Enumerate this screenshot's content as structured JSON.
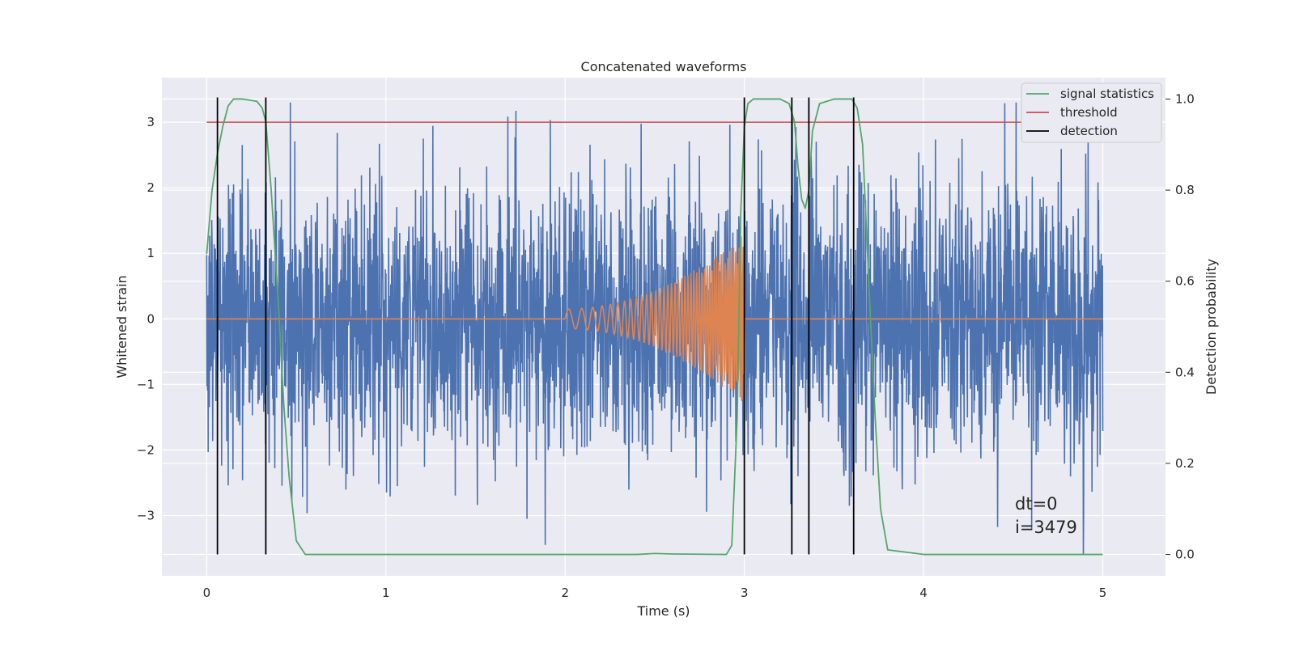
{
  "chart_data": {
    "type": "line",
    "title": "Concatenated waveforms",
    "xlabel": "Time (s)",
    "ylabel": "Whitened strain",
    "y2label": "Detection probability",
    "xlim": [
      -0.25,
      5.35
    ],
    "ylim": [
      -3.92,
      3.68
    ],
    "y2lim": [
      -0.047,
      1.047
    ],
    "x_ticks": [
      0,
      1,
      2,
      3,
      4,
      5
    ],
    "y_ticks": [
      -3,
      -2,
      -1,
      0,
      1,
      2,
      3
    ],
    "y2_ticks": [
      0.0,
      0.2,
      0.4,
      0.6,
      0.8,
      1.0
    ],
    "x_tick_labels": [
      "0",
      "1",
      "2",
      "3",
      "4",
      "5"
    ],
    "y_tick_labels": [
      "−3",
      "−2",
      "−1",
      "0",
      "1",
      "2",
      "3"
    ],
    "y2_tick_labels": [
      "0.0",
      "0.2",
      "0.4",
      "0.6",
      "0.8",
      "1.0"
    ],
    "grid": true,
    "legend_position": "top-right",
    "series": [
      {
        "key": "strain",
        "color": "#4c72b0",
        "x_range": [
          0,
          5
        ],
        "amplitude_typical": 1.0,
        "amplitude_peak": 3.3
      },
      {
        "key": "template",
        "color": "#dd8452",
        "x_range": [
          0,
          5
        ],
        "chirp_start": 2.0,
        "chirp_end": 3.0,
        "chirp_peak_amplitude": 1.3
      },
      {
        "name": "signal statistics",
        "color": "#55a868",
        "axis": "right",
        "x": [
          0,
          0.03,
          0.06,
          0.09,
          0.12,
          0.15,
          0.2,
          0.28,
          0.31,
          0.33,
          0.36,
          0.4,
          0.43,
          0.46,
          0.5,
          0.55,
          0.7,
          1.0,
          1.5,
          2.0,
          2.4,
          2.5,
          2.6,
          2.9,
          2.93,
          2.96,
          2.98,
          3.0,
          3.02,
          3.05,
          3.1,
          3.2,
          3.25,
          3.28,
          3.3,
          3.32,
          3.34,
          3.36,
          3.38,
          3.42,
          3.5,
          3.6,
          3.63,
          3.66,
          3.7,
          3.73,
          3.76,
          3.8,
          4.0,
          4.5,
          5.0
        ],
        "y": [
          0.66,
          0.8,
          0.88,
          0.94,
          0.985,
          1.0,
          1.0,
          0.995,
          0.98,
          0.95,
          0.8,
          0.55,
          0.33,
          0.17,
          0.03,
          0.0,
          0.0,
          0.0,
          0.0,
          0.0,
          0.0,
          0.002,
          0.001,
          0.0,
          0.02,
          0.3,
          0.75,
          0.94,
          0.99,
          1.0,
          1.0,
          1.0,
          0.99,
          0.95,
          0.85,
          0.78,
          0.76,
          0.8,
          0.93,
          0.99,
          1.0,
          1.0,
          0.98,
          0.9,
          0.55,
          0.3,
          0.1,
          0.01,
          0.0,
          0.0,
          0.0
        ]
      },
      {
        "name": "threshold",
        "color": "#c44e52",
        "axis": "left",
        "x": [
          0,
          5
        ],
        "y": [
          3.0,
          3.0
        ]
      },
      {
        "name": "detection",
        "color": "#000000",
        "axis": "right",
        "type": "vlines",
        "x": [
          0.06,
          0.33,
          3.0,
          3.265,
          3.36,
          3.61
        ],
        "ymin": 0.0,
        "ymax": 1.0
      }
    ],
    "annotation": [
      "dt=0",
      "i=3479"
    ]
  }
}
